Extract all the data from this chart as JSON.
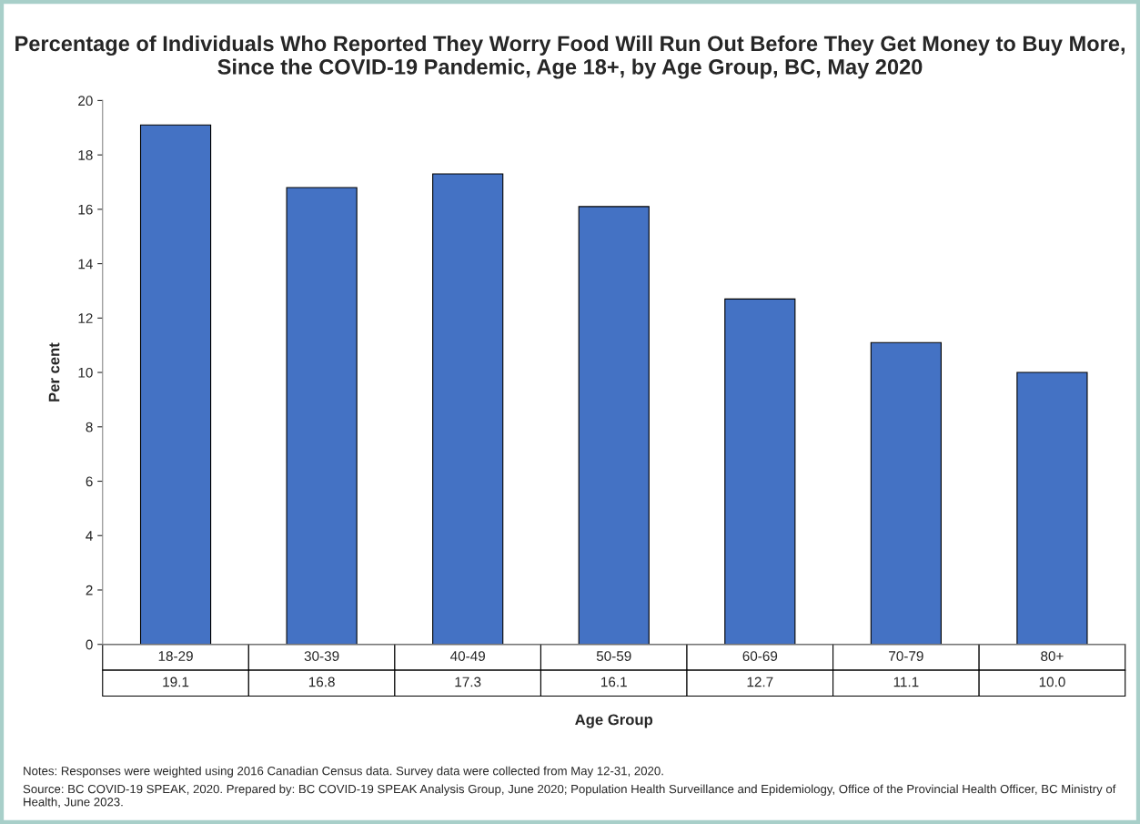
{
  "chart_data": {
    "type": "bar",
    "title": "Percentage of Individuals Who Reported They Worry Food Will Run Out Before They Get Money to Buy More, Since the COVID-19 Pandemic, Age 18+, by Age Group, BC, May 2020",
    "xlabel": "Age Group",
    "ylabel": "Per cent",
    "categories": [
      "18-29",
      "30-39",
      "40-49",
      "50-59",
      "60-69",
      "70-79",
      "80+"
    ],
    "values": [
      19.1,
      16.8,
      17.3,
      16.1,
      12.7,
      11.1,
      10.0
    ],
    "value_labels": [
      "19.1",
      "16.8",
      "17.3",
      "16.1",
      "12.7",
      "11.1",
      "10.0"
    ],
    "color": "#4472c4",
    "ylim": [
      0,
      20
    ],
    "yticks": [
      0,
      2,
      4,
      6,
      8,
      10,
      12,
      14,
      16,
      18,
      20
    ],
    "grid": false,
    "legend": false,
    "annotations": [
      "Notes: Responses were weighted using 2016 Canadian Census data. Survey data were collected from May 12-31, 2020.",
      "Source: BC COVID-19 SPEAK, 2020. Prepared by: BC COVID-19 SPEAK Analysis Group, June 2020; Population Health Surveillance and Epidemiology, Office of the Provincial Health Officer, BC Ministry of Health, June 2023."
    ]
  }
}
